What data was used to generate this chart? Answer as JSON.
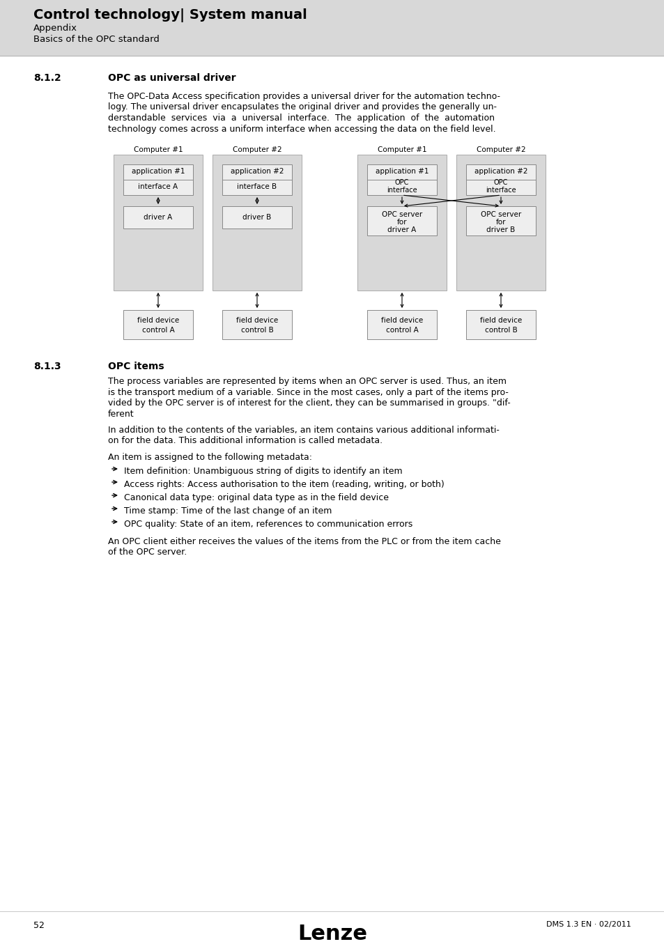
{
  "page_bg": "#ffffff",
  "header_bg": "#d8d8d8",
  "header_title": "Control technology| System manual",
  "header_sub1": "Appendix",
  "header_sub2": "Basics of the OPC standard",
  "section_812_num": "8.1.2",
  "section_812_title": "OPC as universal driver",
  "section_812_body_lines": [
    "The OPC-Data Access specification provides a universal driver for the automation techno-",
    "logy. The universal driver encapsulates the original driver and provides the generally un-",
    "derstandable  services  via  a  universal  interface.  The  application  of  the  automation",
    "technology comes across a uniform interface when accessing the data on the field level."
  ],
  "section_813_num": "8.1.3",
  "section_813_title": "OPC items",
  "section_813_para1_lines": [
    "The process variables are represented by items when an OPC server is used. Thus, an item",
    "is the transport medium of a variable. Since in the most cases, only a part of the items pro-",
    "vided by the OPC server is of interest for the client, they can be summarised in groups. \"dif-",
    "ferent"
  ],
  "section_813_para2_lines": [
    "In addition to the contents of the variables, an item contains various additional informati-",
    "on for the data. This additional information is called metadata."
  ],
  "section_813_para3": "An item is assigned to the following metadata:",
  "bullet_items": [
    "Item definition: Unambiguous string of digits to identify an item",
    "Access rights: Access authorisation to the item (reading, writing, or both)",
    "Canonical data type: original data type as in the field device",
    "Time stamp: Time of the last change of an item",
    "OPC quality: State of an item, references to communication errors"
  ],
  "section_813_last_lines": [
    "An OPC client either receives the values of the items from the PLC or from the item cache",
    "of the OPC server."
  ],
  "footer_page": "52",
  "footer_logo": "Lenze",
  "footer_right": "DMS 1.3 EN · 02/2011",
  "diag_panel_bg": "#d8d8d8",
  "diag_box_bg": "#eeeeee",
  "diag_box_border": "#888888",
  "diag_panel_border": "#aaaaaa"
}
